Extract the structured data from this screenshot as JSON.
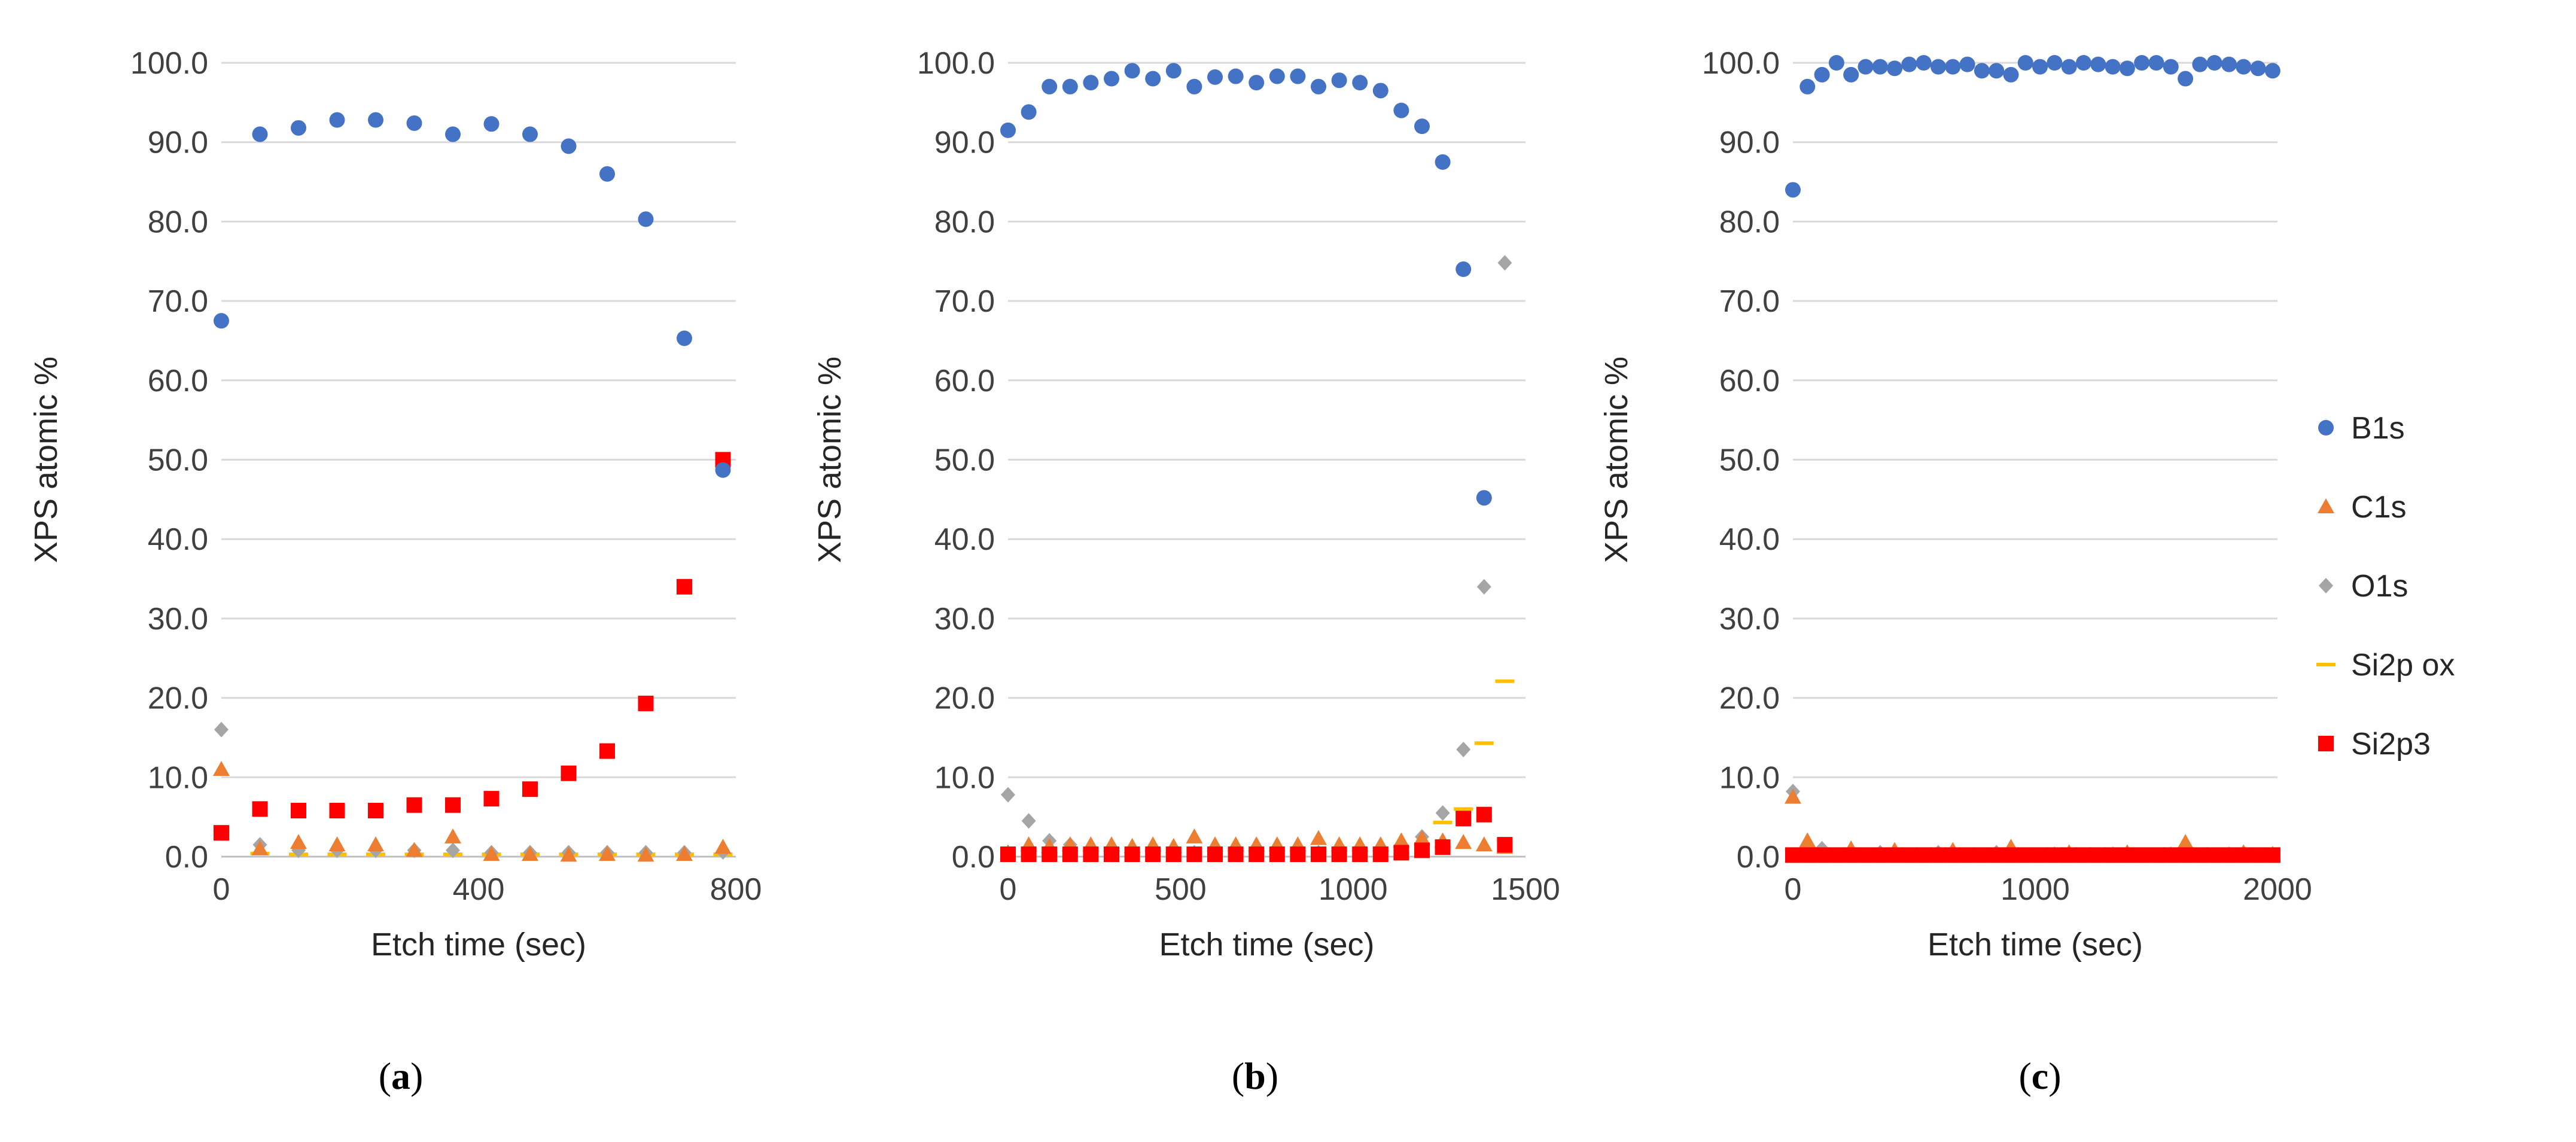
{
  "chart_data": [
    {
      "type": "scatter",
      "panel_label": "a",
      "xlabel": "Etch time (sec)",
      "ylabel": "XPS atomic %",
      "xlim": [
        0,
        800
      ],
      "ylim": [
        0,
        100
      ],
      "xticks": [
        "0",
        "400",
        "800"
      ],
      "yticks": [
        "0.0",
        "10.0",
        "20.0",
        "30.0",
        "40.0",
        "50.0",
        "60.0",
        "70.0",
        "80.0",
        "90.0",
        "100.0"
      ],
      "grid": "horizontal",
      "series": [
        {
          "name": "B1s",
          "x": [
            0,
            60,
            120,
            180,
            240,
            300,
            360,
            420,
            480,
            540,
            600,
            660,
            720,
            780
          ],
          "y": [
            67.5,
            91.0,
            91.8,
            92.8,
            92.8,
            92.4,
            91.0,
            92.3,
            91.0,
            89.5,
            86.0,
            80.3,
            65.3,
            48.7
          ]
        },
        {
          "name": "C1s",
          "x": [
            0,
            60,
            120,
            180,
            240,
            300,
            360,
            420,
            480,
            540,
            600,
            660,
            720,
            780
          ],
          "y": [
            11.0,
            1.0,
            1.8,
            1.5,
            1.5,
            0.8,
            2.5,
            0.3,
            0.3,
            0.2,
            0.3,
            0.2,
            0.3,
            1.2
          ]
        },
        {
          "name": "O1s",
          "x": [
            0,
            60,
            120,
            180,
            240,
            300,
            360,
            420,
            480,
            540,
            600,
            660,
            720,
            780
          ],
          "y": [
            16.0,
            1.5,
            0.8,
            0.8,
            0.8,
            0.8,
            0.8,
            0.5,
            0.5,
            0.5,
            0.5,
            0.5,
            0.5,
            0.6
          ]
        },
        {
          "name": "Si2p ox",
          "x": [
            60,
            120,
            180,
            240,
            300,
            360,
            420,
            480,
            540,
            600,
            660,
            720,
            780
          ],
          "y": [
            0.4,
            0.3,
            0.3,
            0.3,
            0.3,
            0.3,
            0.3,
            0.3,
            0.3,
            0.3,
            0.3,
            0.3,
            0.3
          ]
        },
        {
          "name": "Si2p3",
          "x": [
            0,
            60,
            120,
            180,
            240,
            300,
            360,
            420,
            480,
            540,
            600,
            660,
            720,
            780
          ],
          "y": [
            3.0,
            6.0,
            5.8,
            5.8,
            5.8,
            6.5,
            6.5,
            7.3,
            8.5,
            10.5,
            13.3,
            19.3,
            34.0,
            50.0
          ]
        }
      ]
    },
    {
      "type": "scatter",
      "panel_label": "b",
      "xlabel": "Etch time (sec)",
      "ylabel": "XPS atomic %",
      "xlim": [
        0,
        1500
      ],
      "ylim": [
        0,
        100
      ],
      "xticks": [
        "0",
        "500",
        "1000",
        "1500"
      ],
      "yticks": [
        "0.0",
        "10.0",
        "20.0",
        "30.0",
        "40.0",
        "50.0",
        "60.0",
        "70.0",
        "80.0",
        "90.0",
        "100.0"
      ],
      "grid": "horizontal",
      "series": [
        {
          "name": "B1s",
          "x": [
            0,
            60,
            120,
            180,
            240,
            300,
            360,
            420,
            480,
            540,
            600,
            660,
            720,
            780,
            840,
            900,
            960,
            1020,
            1080,
            1140,
            1200,
            1260,
            1320,
            1380
          ],
          "y": [
            91.5,
            93.8,
            97.0,
            97.0,
            97.5,
            98.0,
            99.0,
            98.0,
            99.0,
            97.0,
            98.2,
            98.3,
            97.5,
            98.3,
            98.3,
            97.0,
            97.8,
            97.5,
            96.5,
            94.0,
            92.0,
            87.5,
            74.0,
            45.2
          ]
        },
        {
          "name": "C1s",
          "x": [
            0,
            60,
            120,
            180,
            240,
            300,
            360,
            420,
            480,
            540,
            600,
            660,
            720,
            780,
            840,
            900,
            960,
            1020,
            1080,
            1140,
            1200,
            1260,
            1320,
            1380,
            1440
          ],
          "y": [
            0.5,
            1.5,
            1.3,
            1.5,
            1.5,
            1.5,
            1.3,
            1.5,
            1.3,
            2.5,
            1.5,
            1.5,
            1.5,
            1.5,
            1.5,
            2.3,
            1.5,
            1.5,
            1.5,
            2.0,
            2.3,
            2.0,
            1.8,
            1.5,
            1.2
          ]
        },
        {
          "name": "O1s",
          "x": [
            0,
            60,
            120,
            180,
            240,
            300,
            360,
            420,
            480,
            540,
            600,
            660,
            720,
            780,
            840,
            900,
            960,
            1020,
            1080,
            1140,
            1200,
            1260,
            1320,
            1380,
            1440
          ],
          "y": [
            7.8,
            4.5,
            2.0,
            1.5,
            1.0,
            1.0,
            0.8,
            0.8,
            0.5,
            0.5,
            0.5,
            0.5,
            0.5,
            0.5,
            0.5,
            0.5,
            0.5,
            0.5,
            0.8,
            1.5,
            2.5,
            5.5,
            13.5,
            34.0,
            74.8
          ]
        },
        {
          "name": "Si2p ox",
          "x": [
            1260,
            1320,
            1380,
            1440
          ],
          "y": [
            4.3,
            6.0,
            14.3,
            22.1
          ]
        },
        {
          "name": "Si2p3",
          "x": [
            0,
            60,
            120,
            180,
            240,
            300,
            360,
            420,
            480,
            540,
            600,
            660,
            720,
            780,
            840,
            900,
            960,
            1020,
            1080,
            1140,
            1200,
            1260,
            1320,
            1380,
            1440
          ],
          "y": [
            0.3,
            0.3,
            0.3,
            0.3,
            0.3,
            0.3,
            0.3,
            0.3,
            0.3,
            0.3,
            0.3,
            0.3,
            0.3,
            0.3,
            0.3,
            0.3,
            0.3,
            0.3,
            0.3,
            0.5,
            0.8,
            1.2,
            4.8,
            5.3,
            1.5
          ]
        }
      ]
    },
    {
      "type": "scatter",
      "panel_label": "c",
      "xlabel": "Etch time (sec)",
      "ylabel": "XPS atomic %",
      "xlim": [
        0,
        2000
      ],
      "ylim": [
        0,
        100
      ],
      "xticks": [
        "0",
        "1000",
        "2000"
      ],
      "yticks": [
        "0.0",
        "10.0",
        "20.0",
        "30.0",
        "40.0",
        "50.0",
        "60.0",
        "70.0",
        "80.0",
        "90.0",
        "100.0"
      ],
      "grid": "horizontal",
      "series": [
        {
          "name": "B1s",
          "x": [
            0,
            60,
            120,
            180,
            240,
            300,
            360,
            420,
            480,
            540,
            600,
            660,
            720,
            780,
            840,
            900,
            960,
            1020,
            1080,
            1140,
            1200,
            1260,
            1320,
            1380,
            1440,
            1500,
            1560,
            1620,
            1680,
            1740,
            1800,
            1860,
            1920,
            1980
          ],
          "y": [
            84.0,
            97.0,
            98.5,
            100.0,
            98.5,
            99.5,
            99.5,
            99.3,
            99.8,
            100.0,
            99.5,
            99.5,
            99.8,
            99.0,
            99.0,
            98.5,
            100.0,
            99.5,
            100.0,
            99.5,
            100.0,
            99.8,
            99.5,
            99.3,
            100.0,
            100.0,
            99.5,
            98.0,
            99.8,
            100.0,
            99.8,
            99.5,
            99.3,
            99.0
          ]
        },
        {
          "name": "C1s",
          "x": [
            0,
            60,
            240,
            420,
            660,
            900,
            1140,
            1380,
            1620,
            1860,
            1980
          ],
          "y": [
            7.5,
            2.0,
            1.0,
            0.8,
            0.8,
            1.2,
            0.5,
            0.5,
            1.8,
            0.5,
            0.3
          ]
        },
        {
          "name": "O1s",
          "x": [
            0,
            120,
            360,
            600,
            840,
            1080,
            1320,
            1560,
            1800
          ],
          "y": [
            8.2,
            1.0,
            0.5,
            0.5,
            0.5,
            0.3,
            0.3,
            0.3,
            0.3
          ]
        },
        {
          "name": "Si2p ox",
          "x": [
            300,
            900,
            1500
          ],
          "y": [
            0.2,
            0.2,
            0.2
          ]
        },
        {
          "name": "Si2p3",
          "x": [
            0,
            60,
            120,
            180,
            240,
            300,
            360,
            420,
            480,
            540,
            600,
            660,
            720,
            780,
            840,
            900,
            960,
            1020,
            1080,
            1140,
            1200,
            1260,
            1320,
            1380,
            1440,
            1500,
            1560,
            1620,
            1680,
            1740,
            1800,
            1860,
            1920,
            1980
          ],
          "y": [
            0.2,
            0.2,
            0.2,
            0.2,
            0.2,
            0.2,
            0.2,
            0.2,
            0.2,
            0.2,
            0.2,
            0.2,
            0.2,
            0.2,
            0.2,
            0.2,
            0.2,
            0.2,
            0.2,
            0.2,
            0.2,
            0.2,
            0.2,
            0.2,
            0.2,
            0.2,
            0.2,
            0.2,
            0.2,
            0.2,
            0.2,
            0.2,
            0.2,
            0.2
          ]
        }
      ]
    }
  ],
  "legend": {
    "placement": "right",
    "entries": [
      {
        "name": "B1s",
        "marker": "circle",
        "color": "#4472c4"
      },
      {
        "name": "C1s",
        "marker": "triangle",
        "color": "#ed7d31"
      },
      {
        "name": "O1s",
        "marker": "diamond",
        "color": "#a5a5a5"
      },
      {
        "name": "Si2p ox",
        "marker": "dash",
        "color": "#ffc000"
      },
      {
        "name": "Si2p3",
        "marker": "square",
        "color": "#ff0000"
      }
    ]
  }
}
